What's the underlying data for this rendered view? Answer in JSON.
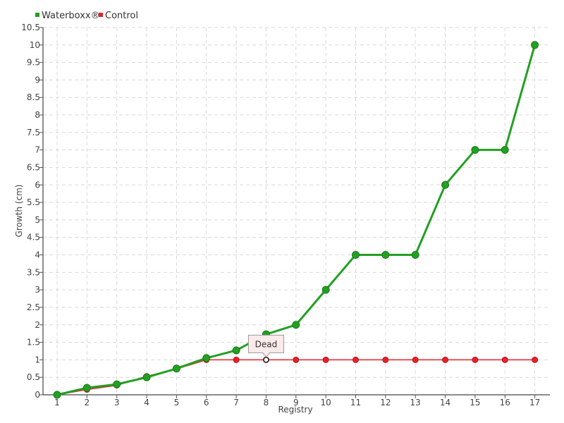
{
  "chart_data": {
    "type": "line",
    "title": "",
    "xlabel": "Registry",
    "ylabel": "Growth (cm)",
    "categories": [
      "1",
      "2",
      "3",
      "4",
      "5",
      "6",
      "7",
      "8",
      "9",
      "10",
      "11",
      "12",
      "13",
      "14",
      "15",
      "16",
      "17"
    ],
    "ylim": [
      0,
      10.5
    ],
    "ytick_step": 0.5,
    "grid": true,
    "legend_position": "top-left",
    "series": [
      {
        "name": "Waterboxx®",
        "color": "#22a022",
        "values": [
          0,
          0.2,
          0.3,
          0.5,
          0.75,
          1.05,
          1.27,
          1.73,
          2.0,
          3.0,
          4.0,
          4.0,
          4.0,
          6.0,
          7.0,
          7.0,
          10.0
        ]
      },
      {
        "name": "Control",
        "color": "#e8202a",
        "values": [
          0,
          0.15,
          0.27,
          0.53,
          0.74,
          1.0,
          1.0,
          1.0,
          1.0,
          1.0,
          1.0,
          1.0,
          1.0,
          1.0,
          1.0,
          1.0,
          1.0
        ]
      }
    ],
    "annotations": [
      {
        "text": "Dead",
        "series": "Control",
        "category": "8"
      }
    ]
  }
}
